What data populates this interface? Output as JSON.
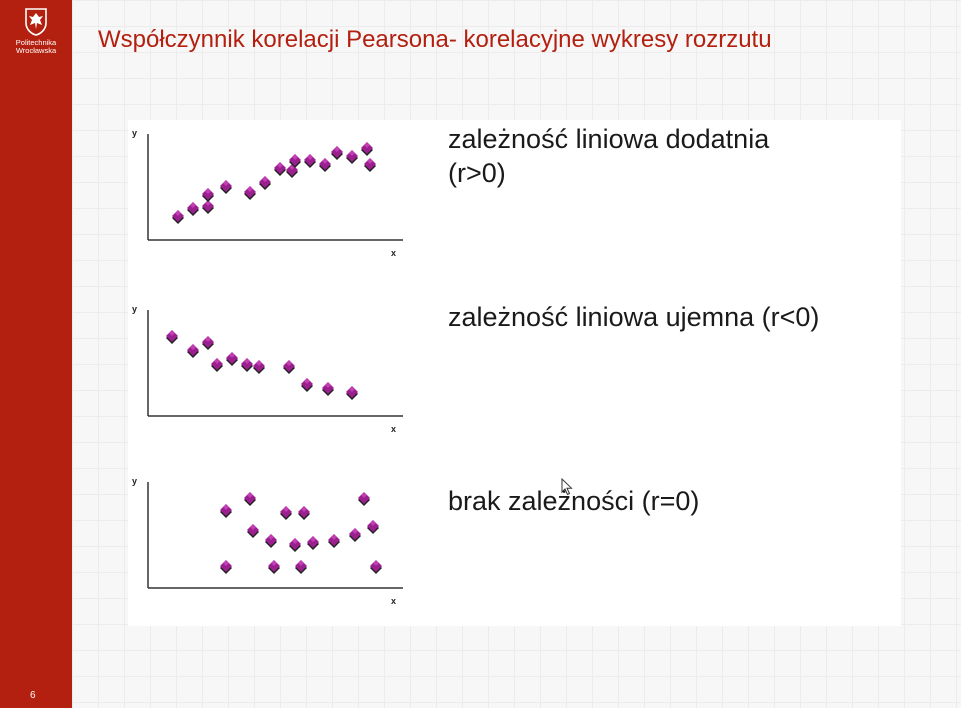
{
  "sidebar": {
    "logo_line1": "Politechnika",
    "logo_line2": "Wrocławska",
    "page_number": "6",
    "color": "#b4200f"
  },
  "slide": {
    "title": "Współczynnik korelacji Pearsona- korelacyjne wykresy rozrzutu",
    "title_color": "#b4200f"
  },
  "panels": [
    {
      "caption_line1": "zależność liniowa dodatnia",
      "caption_line2": "(r>0)"
    },
    {
      "caption_line1": "zależność liniowa ujemna (r<0)",
      "caption_line2": ""
    },
    {
      "caption_line1": "brak zależności (r=0)",
      "caption_line2": ""
    }
  ],
  "chart_data": [
    {
      "type": "scatter",
      "xlabel": "x",
      "ylabel": "y",
      "marker_color": "#9b1f8e",
      "points": [
        {
          "x": 1.0,
          "y": 1.2
        },
        {
          "x": 1.5,
          "y": 1.6
        },
        {
          "x": 2.0,
          "y": 1.7
        },
        {
          "x": 2.0,
          "y": 2.3
        },
        {
          "x": 2.6,
          "y": 2.7
        },
        {
          "x": 3.4,
          "y": 2.4
        },
        {
          "x": 3.9,
          "y": 2.9
        },
        {
          "x": 4.4,
          "y": 3.6
        },
        {
          "x": 4.8,
          "y": 3.5
        },
        {
          "x": 4.9,
          "y": 4.0
        },
        {
          "x": 5.4,
          "y": 4.0
        },
        {
          "x": 5.9,
          "y": 3.8
        },
        {
          "x": 6.3,
          "y": 4.4
        },
        {
          "x": 6.8,
          "y": 4.2
        },
        {
          "x": 7.3,
          "y": 4.6
        },
        {
          "x": 7.4,
          "y": 3.8
        }
      ]
    },
    {
      "type": "scatter",
      "xlabel": "x",
      "ylabel": "y",
      "marker_color": "#9b1f8e",
      "points": [
        {
          "x": 0.8,
          "y": 4.0
        },
        {
          "x": 1.5,
          "y": 3.3
        },
        {
          "x": 2.0,
          "y": 3.7
        },
        {
          "x": 2.3,
          "y": 2.6
        },
        {
          "x": 2.8,
          "y": 2.9
        },
        {
          "x": 3.3,
          "y": 2.6
        },
        {
          "x": 3.7,
          "y": 2.5
        },
        {
          "x": 4.7,
          "y": 2.5
        },
        {
          "x": 5.3,
          "y": 1.6
        },
        {
          "x": 6.0,
          "y": 1.4
        },
        {
          "x": 6.8,
          "y": 1.2
        }
      ]
    },
    {
      "type": "scatter",
      "xlabel": "x",
      "ylabel": "y",
      "marker_color": "#9b1f8e",
      "points": [
        {
          "x": 3.4,
          "y": 4.5
        },
        {
          "x": 2.6,
          "y": 3.9
        },
        {
          "x": 4.6,
          "y": 3.8
        },
        {
          "x": 5.2,
          "y": 3.8
        },
        {
          "x": 7.2,
          "y": 4.5
        },
        {
          "x": 3.5,
          "y": 2.9
        },
        {
          "x": 4.1,
          "y": 2.4
        },
        {
          "x": 4.9,
          "y": 2.2
        },
        {
          "x": 5.5,
          "y": 2.3
        },
        {
          "x": 6.2,
          "y": 2.4
        },
        {
          "x": 6.9,
          "y": 2.7
        },
        {
          "x": 7.5,
          "y": 3.1
        },
        {
          "x": 2.6,
          "y": 1.1
        },
        {
          "x": 4.2,
          "y": 1.1
        },
        {
          "x": 5.1,
          "y": 1.1
        },
        {
          "x": 7.6,
          "y": 1.1
        }
      ]
    }
  ]
}
